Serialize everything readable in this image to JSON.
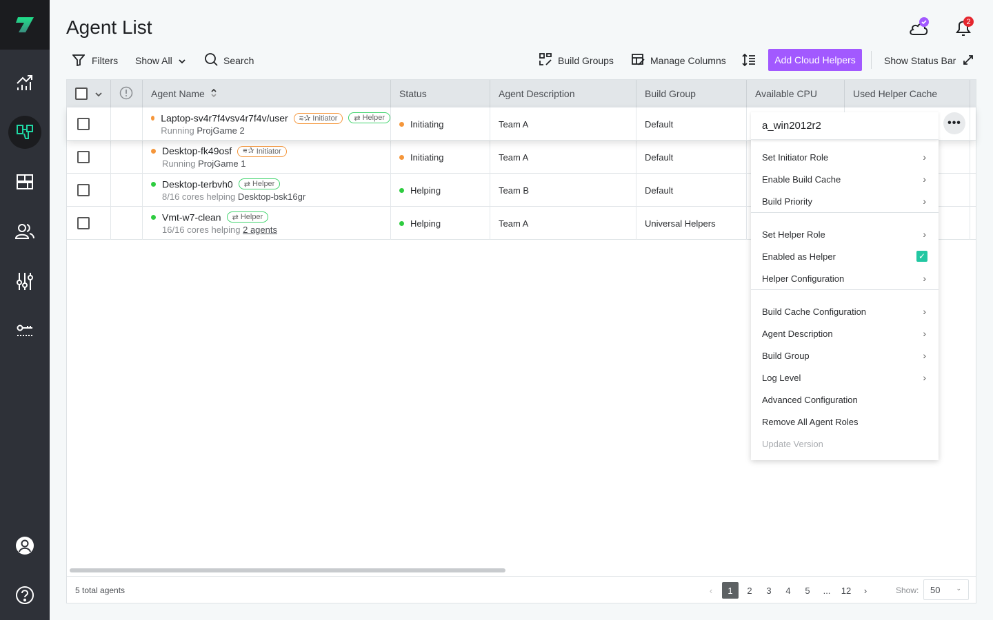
{
  "page": {
    "title": "Agent List"
  },
  "colors": {
    "accent": "#a259ff",
    "initiator": "#f5963a",
    "helper": "#3ed36b",
    "checked": "#22c7a2",
    "sidebar_active": "#1fd8a4"
  },
  "header": {
    "notification_count": "2"
  },
  "toolbar": {
    "filters": "Filters",
    "show_all": "Show All",
    "search": "Search",
    "build_groups": "Build Groups",
    "manage_columns": "Manage Columns",
    "add_cloud_helpers": "Add Cloud Helpers",
    "show_status_bar": "Show Status Bar"
  },
  "table": {
    "columns": [
      "Agent Name",
      "Status",
      "Agent Description",
      "Build Group",
      "Available CPU",
      "Used Helper Cache"
    ],
    "rows": [
      {
        "name": "Laptop-sv4r7f4vsv4r7f4v/user",
        "badges": [
          "Initiator",
          "Helper"
        ],
        "sub_prefix": "Running",
        "sub_value": "ProjGame 2",
        "sub_link": "",
        "status": "Initiating",
        "status_color": "#f5963a",
        "description": "Team A",
        "build_group": "Default"
      },
      {
        "name": "Desktop-fk49osf",
        "badges": [
          "Initiator"
        ],
        "sub_prefix": "Running",
        "sub_value": "ProjGame 1",
        "sub_link": "",
        "status": "Initiating",
        "status_color": "#f5963a",
        "description": "Team A",
        "build_group": "Default"
      },
      {
        "name": "Desktop-terbvh0",
        "badges": [
          "Helper"
        ],
        "sub_prefix": "8/16 cores helping",
        "sub_value": "Desktop-bsk16gr",
        "sub_link": "",
        "status": "Helping",
        "status_color": "#2ecc40",
        "description": "Team B",
        "build_group": "Default"
      },
      {
        "name": "Vmt-w7-clean",
        "badges": [
          "Helper"
        ],
        "sub_prefix": "16/16 cores helping",
        "sub_value": "",
        "sub_link": "2 agents",
        "status": "Helping",
        "status_color": "#2ecc40",
        "description": "Team A",
        "build_group": "Universal Helpers"
      }
    ]
  },
  "context_menu": {
    "title": "a_win2012r2",
    "items": [
      {
        "label": "Set Initiator Role",
        "submenu": true
      },
      {
        "label": "Enable Build Cache",
        "submenu": true
      },
      {
        "label": "Build Priority",
        "submenu": true
      },
      {
        "label": "Set Helper Role",
        "submenu": true
      },
      {
        "label": "Enabled as Helper",
        "checked": true
      },
      {
        "label": "Helper Configuration",
        "submenu": true
      },
      {
        "label": "Build Cache Configuration",
        "submenu": true
      },
      {
        "label": "Agent Description",
        "submenu": true
      },
      {
        "label": "Build Group",
        "submenu": true
      },
      {
        "label": "Log Level",
        "submenu": true
      },
      {
        "label": "Advanced Configuration",
        "submenu": false
      },
      {
        "label": "Remove All Agent Roles",
        "submenu": false
      },
      {
        "label": "Update Version",
        "disabled": true
      }
    ]
  },
  "footer": {
    "total": "5 total agents",
    "pages": [
      "1",
      "2",
      "3",
      "4",
      "5",
      "...",
      "12"
    ],
    "current_page": "1",
    "show_label": "Show:",
    "page_size": "50"
  }
}
